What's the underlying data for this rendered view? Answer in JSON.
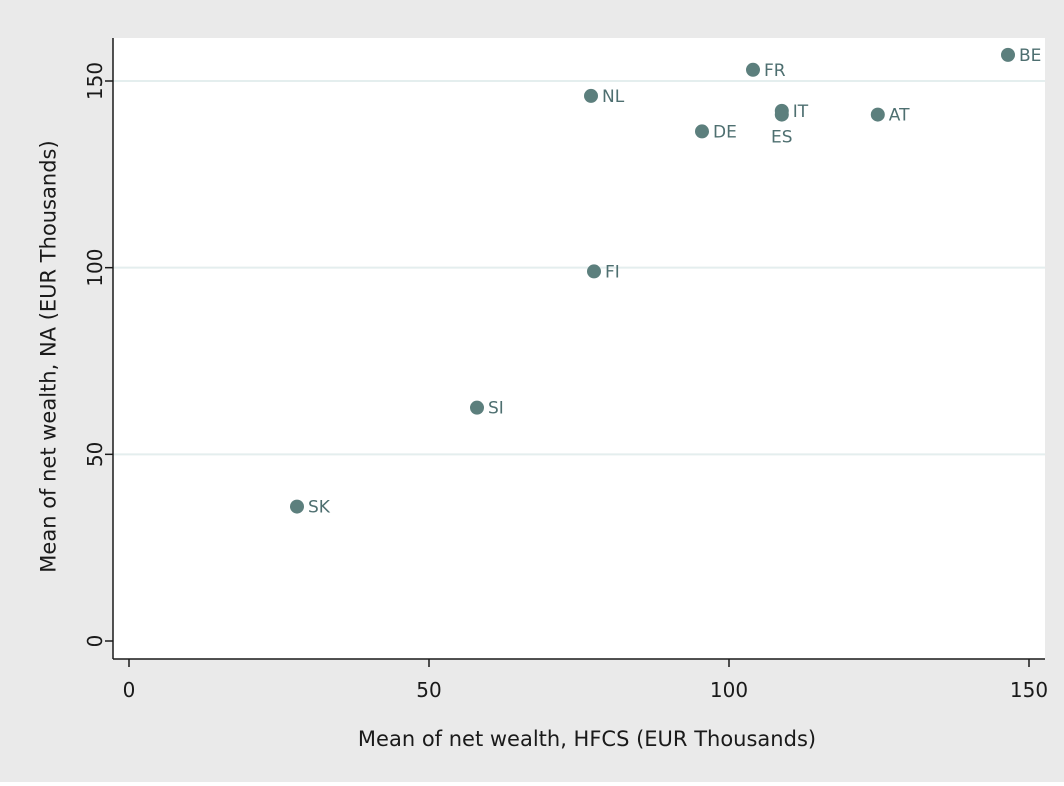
{
  "chart_data": {
    "type": "scatter",
    "title": "",
    "xlabel": "Mean of net wealth, HFCS (EUR Thousands)",
    "ylabel": "Mean of net wealth, NA (EUR Thousands)",
    "xlim": [
      0,
      150
    ],
    "ylim": [
      0,
      150
    ],
    "xticks": [
      "0",
      "50",
      "100",
      "150"
    ],
    "yticks": [
      "0",
      "50",
      "100",
      "150"
    ],
    "grid": "horizontal",
    "marker_color": "#5c7f7d",
    "label_color": "#4e6f70",
    "points": [
      {
        "label": "SK",
        "x": 28.0,
        "y": 36.0,
        "label_pos": "right"
      },
      {
        "label": "SI",
        "x": 58.0,
        "y": 62.5,
        "label_pos": "right"
      },
      {
        "label": "FI",
        "x": 77.5,
        "y": 99.0,
        "label_pos": "right"
      },
      {
        "label": "NL",
        "x": 77.0,
        "y": 146.0,
        "label_pos": "right"
      },
      {
        "label": "DE",
        "x": 95.5,
        "y": 136.5,
        "label_pos": "right"
      },
      {
        "label": "FR",
        "x": 104.0,
        "y": 153.0,
        "label_pos": "right"
      },
      {
        "label": "IT",
        "x": 108.8,
        "y": 142.0,
        "label_pos": "right"
      },
      {
        "label": "ES",
        "x": 108.8,
        "y": 141.0,
        "label_pos": "below"
      },
      {
        "label": "AT",
        "x": 124.8,
        "y": 141.0,
        "label_pos": "right"
      },
      {
        "label": "BE",
        "x": 146.5,
        "y": 157.0,
        "label_pos": "right"
      }
    ]
  }
}
